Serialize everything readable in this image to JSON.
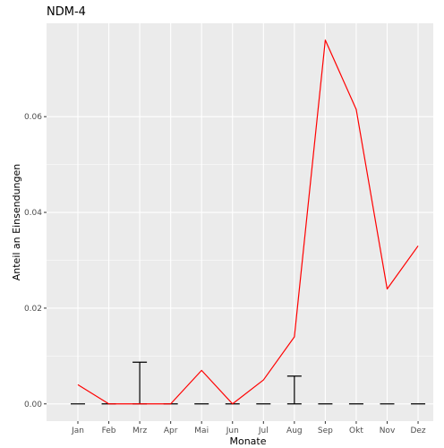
{
  "chart_data": {
    "type": "line",
    "title": "NDM-4",
    "xlabel": "Monate",
    "ylabel": "Anteil an Einsendungen",
    "categories": [
      "Jan",
      "Feb",
      "Mrz",
      "Apr",
      "Mai",
      "Jun",
      "Jul",
      "Aug",
      "Sep",
      "Okt",
      "Nov",
      "Dez"
    ],
    "series": [
      {
        "values": [
          0.004,
          0.0,
          0.0,
          0.0,
          0.007,
          0.0,
          0.005,
          0.014,
          0.076,
          0.0615,
          0.024,
          0.033
        ],
        "color": "#ff0000"
      }
    ],
    "error_bars": {
      "color": "#000000",
      "center": [
        0,
        0,
        0,
        0,
        0,
        0,
        0,
        0,
        0,
        0,
        0,
        0
      ],
      "upper": [
        0,
        0,
        0.0087,
        0,
        0,
        0,
        0,
        0.0058,
        0,
        0,
        0,
        0
      ]
    },
    "yticks": [
      "0.00",
      "0.02",
      "0.04",
      "0.06"
    ],
    "ytick_values": [
      0.0,
      0.02,
      0.04,
      0.06
    ],
    "ylim": [
      -0.0036,
      0.0795
    ],
    "grid": true,
    "panel_background": "#ebebeb",
    "grid_color": "#ffffff"
  }
}
